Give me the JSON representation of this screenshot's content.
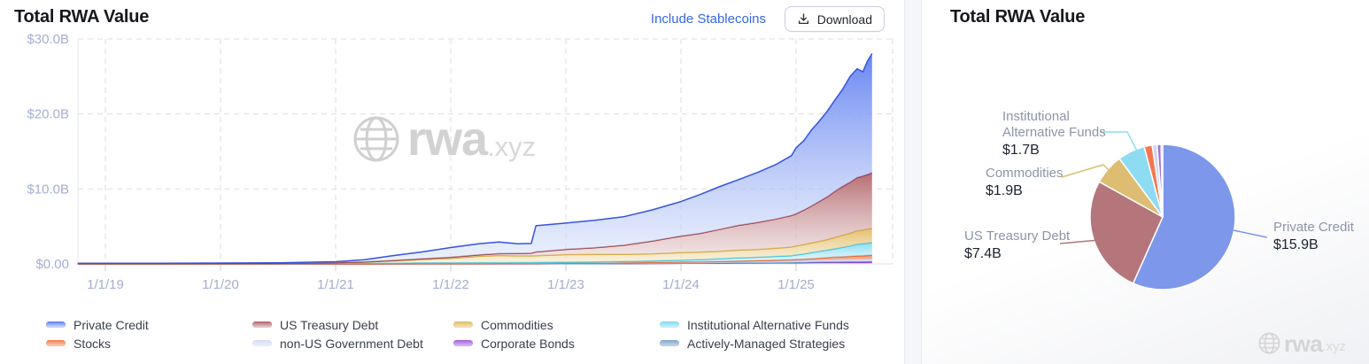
{
  "left_panel": {
    "title": "Total RWA Value",
    "include_stablecoins_label": "Include Stablecoins",
    "download_label": "Download"
  },
  "right_panel": {
    "title": "Total RWA Value"
  },
  "watermark": {
    "brand": "rwa",
    "tld": ".xyz"
  },
  "colors": {
    "link": "#3668e0",
    "axis_label": "#a3aed0",
    "grid": "#dcdee4",
    "title": "#15181e"
  },
  "chart_data": [
    {
      "type": "area",
      "stacked": true,
      "title": "Total RWA Value",
      "unit": "$B",
      "ylim": [
        0,
        30
      ],
      "xlim_years": [
        2018.76,
        2025.84
      ],
      "grid": "dashed",
      "legend_position": "bottom",
      "y_ticks": [
        {
          "label": "$30.0B",
          "value": 30
        },
        {
          "label": "$20.0B",
          "value": 20
        },
        {
          "label": "$10.0B",
          "value": 10
        },
        {
          "label": "$0.00",
          "value": 0
        }
      ],
      "x_ticks": [
        {
          "label": "1/1/19",
          "year": 2019
        },
        {
          "label": "1/1/20",
          "year": 2020
        },
        {
          "label": "1/1/21",
          "year": 2021
        },
        {
          "label": "1/1/22",
          "year": 2022
        },
        {
          "label": "1/1/23",
          "year": 2023
        },
        {
          "label": "1/1/24",
          "year": 2024
        },
        {
          "label": "1/1/25",
          "year": 2025
        }
      ],
      "x_years": [
        2018.76,
        2019.0,
        2019.5,
        2020.0,
        2020.5,
        2021.0,
        2021.25,
        2021.5,
        2021.75,
        2022.0,
        2022.25,
        2022.42,
        2022.58,
        2022.7,
        2022.74,
        2023.0,
        2023.25,
        2023.5,
        2023.75,
        2024.0,
        2024.17,
        2024.33,
        2024.5,
        2024.67,
        2024.83,
        2024.96,
        2025.0,
        2025.07,
        2025.13,
        2025.2,
        2025.27,
        2025.33,
        2025.4,
        2025.47,
        2025.53,
        2025.58,
        2025.62,
        2025.66
      ],
      "stack_order": [
        "Corporate Bonds",
        "Actively-Managed Strategies",
        "non-US Government Debt",
        "Stocks",
        "Institutional Alternative Funds",
        "Commodities",
        "US Treasury Debt",
        "Private Credit"
      ],
      "series": [
        {
          "name": "Private Credit",
          "line": "#3354dd",
          "fill_top": "#5b7cf0",
          "fill_bottom": "#dde6fb",
          "values": [
            0.02,
            0.03,
            0.04,
            0.06,
            0.08,
            0.14,
            0.3,
            0.65,
            0.9,
            1.3,
            1.5,
            1.55,
            1.3,
            1.3,
            3.5,
            3.5,
            3.65,
            3.8,
            4.15,
            4.6,
            5.2,
            5.7,
            6.1,
            6.7,
            7.3,
            8.0,
            8.8,
            9.3,
            10.1,
            10.7,
            11.4,
            12.1,
            12.9,
            14.1,
            14.5,
            13.9,
            15.1,
            15.9
          ]
        },
        {
          "name": "US Treasury Debt",
          "line": "#96343c",
          "fill_top": "#b06066",
          "fill_bottom": "#ecdada",
          "values": [
            0,
            0,
            0,
            0,
            0,
            0.02,
            0.03,
            0.05,
            0.1,
            0.15,
            0.2,
            0.25,
            0.3,
            0.35,
            0.5,
            0.7,
            0.9,
            1.2,
            1.7,
            2.2,
            2.5,
            2.9,
            3.3,
            3.6,
            3.9,
            4.2,
            4.3,
            4.6,
            4.9,
            5.3,
            5.7,
            6.1,
            6.5,
            6.8,
            7.1,
            7.2,
            7.3,
            7.4
          ]
        },
        {
          "name": "Commodities",
          "line": "#d5a52f",
          "fill_top": "#e0ba62",
          "fill_bottom": "#f5e8c4",
          "values": [
            0,
            0,
            0,
            0,
            0.01,
            0.05,
            0.15,
            0.3,
            0.45,
            0.6,
            0.85,
            0.95,
            0.9,
            0.9,
            0.9,
            1.0,
            1.0,
            0.95,
            0.95,
            1.0,
            1.0,
            1.0,
            1.05,
            1.05,
            1.1,
            1.15,
            1.2,
            1.25,
            1.3,
            1.35,
            1.4,
            1.5,
            1.6,
            1.7,
            1.8,
            1.82,
            1.85,
            1.9
          ]
        },
        {
          "name": "Institutional Alternative Funds",
          "line": "#25c0e8",
          "fill_top": "#7fd9f2",
          "fill_bottom": "#d9f4fb",
          "values": [
            0.05,
            0.05,
            0.05,
            0.06,
            0.06,
            0.08,
            0.08,
            0.09,
            0.1,
            0.1,
            0.12,
            0.12,
            0.13,
            0.13,
            0.14,
            0.15,
            0.16,
            0.18,
            0.2,
            0.25,
            0.3,
            0.35,
            0.4,
            0.45,
            0.5,
            0.55,
            0.6,
            0.7,
            0.8,
            0.9,
            1.0,
            1.1,
            1.25,
            1.4,
            1.55,
            1.6,
            1.65,
            1.7
          ]
        },
        {
          "name": "Stocks",
          "line": "#e8571f",
          "fill_top": "#f07e4f",
          "fill_bottom": "#fad4c2",
          "values": [
            0,
            0,
            0,
            0,
            0,
            0,
            0,
            0.01,
            0.01,
            0.01,
            0.01,
            0.01,
            0.01,
            0.01,
            0.01,
            0.02,
            0.02,
            0.02,
            0.03,
            0.05,
            0.05,
            0.06,
            0.08,
            0.1,
            0.12,
            0.14,
            0.15,
            0.18,
            0.2,
            0.25,
            0.3,
            0.33,
            0.36,
            0.4,
            0.45,
            0.46,
            0.48,
            0.5
          ]
        },
        {
          "name": "non-US Government Debt",
          "line": "#c3cfec",
          "fill_top": "#d4ddf2",
          "fill_bottom": "#edf1f9",
          "values": [
            0,
            0,
            0,
            0,
            0,
            0.01,
            0.01,
            0.01,
            0.02,
            0.02,
            0.02,
            0.03,
            0.03,
            0.03,
            0.03,
            0.05,
            0.05,
            0.08,
            0.1,
            0.12,
            0.13,
            0.15,
            0.17,
            0.18,
            0.2,
            0.21,
            0.22,
            0.23,
            0.24,
            0.25,
            0.26,
            0.27,
            0.28,
            0.28,
            0.29,
            0.3,
            0.3,
            0.3
          ]
        },
        {
          "name": "Corporate Bonds",
          "line": "#7d22cc",
          "fill_top": "#a55fe0",
          "fill_bottom": "#ddc6f2",
          "values": [
            0,
            0,
            0,
            0,
            0,
            0,
            0,
            0,
            0.01,
            0.01,
            0.01,
            0.01,
            0.01,
            0.01,
            0.01,
            0.02,
            0.03,
            0.04,
            0.06,
            0.08,
            0.09,
            0.1,
            0.12,
            0.13,
            0.15,
            0.16,
            0.17,
            0.18,
            0.19,
            0.2,
            0.21,
            0.22,
            0.23,
            0.23,
            0.24,
            0.24,
            0.25,
            0.25
          ]
        },
        {
          "name": "Actively-Managed Strategies",
          "line": "#5b8cc0",
          "fill_top": "#82a8cf",
          "fill_bottom": "#ccdceb",
          "values": [
            0,
            0,
            0,
            0,
            0,
            0,
            0,
            0,
            0,
            0,
            0,
            0,
            0,
            0,
            0,
            0,
            0,
            0.01,
            0.01,
            0.01,
            0.01,
            0.02,
            0.02,
            0.03,
            0.03,
            0.04,
            0.05,
            0.05,
            0.06,
            0.06,
            0.07,
            0.08,
            0.08,
            0.09,
            0.09,
            0.1,
            0.1,
            0.1
          ]
        }
      ]
    },
    {
      "type": "pie",
      "title": "Total RWA Value",
      "start_angle_deg": 0,
      "direction": "clockwise",
      "slices": [
        {
          "name": "Private Credit",
          "value_b": 15.9,
          "value_label": "$15.9B",
          "color": "#7d97ea",
          "labeled": true,
          "name_lines": [
            "Private Credit"
          ]
        },
        {
          "name": "US Treasury Debt",
          "value_b": 7.4,
          "value_label": "$7.4B",
          "color": "#b4767b",
          "labeled": true,
          "name_lines": [
            "US Treasury Debt"
          ]
        },
        {
          "name": "Commodities",
          "value_b": 1.9,
          "value_label": "$1.9B",
          "color": "#ddbd72",
          "labeled": true,
          "name_lines": [
            "Commodities"
          ]
        },
        {
          "name": "Institutional Alternative Funds",
          "value_b": 1.7,
          "value_label": "$1.7B",
          "color": "#8edcf2",
          "labeled": true,
          "name_lines": [
            "Institutional",
            "Alternative Funds"
          ]
        },
        {
          "name": "Stocks",
          "value_b": 0.5,
          "value_label": "$0.5B",
          "color": "#f4764f",
          "labeled": false
        },
        {
          "name": "non-US Government Debt",
          "value_b": 0.3,
          "value_label": "$0.3B",
          "color": "#cdd8ee",
          "labeled": false
        },
        {
          "name": "Corporate Bonds",
          "value_b": 0.25,
          "value_label": "$0.25B",
          "color": "#a86fd8",
          "labeled": false
        },
        {
          "name": "Actively-Managed Strategies",
          "value_b": 0.1,
          "value_label": "$0.1B",
          "color": "#84aacf",
          "labeled": false
        }
      ]
    }
  ]
}
